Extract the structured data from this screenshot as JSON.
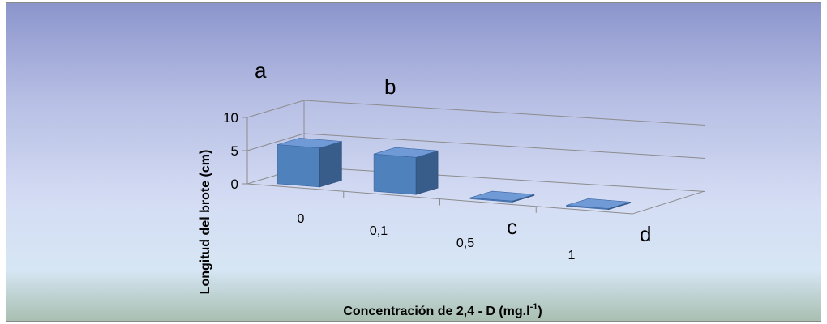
{
  "chart_data": {
    "type": "bar",
    "categories": [
      "0",
      "0,1",
      "0,5",
      "1"
    ],
    "values": [
      5.9,
      5.6,
      0.0,
      0.0
    ],
    "significance_letters": [
      "a",
      "b",
      "c",
      "d"
    ],
    "xlabel": "Concentración de 2,4 - D (mg.l",
    "xlabel_sup": "-1",
    "xlabel_suffix": ")",
    "ylabel": "Longitud del brote (cm)",
    "yticks": [
      "0",
      "5",
      "10"
    ],
    "ylim": [
      0,
      10
    ],
    "grid": true,
    "legend": false,
    "colors": {
      "bar_front": "#4f81bd",
      "bar_side": "#385d8a",
      "bar_top": "#6f9ad6"
    }
  }
}
